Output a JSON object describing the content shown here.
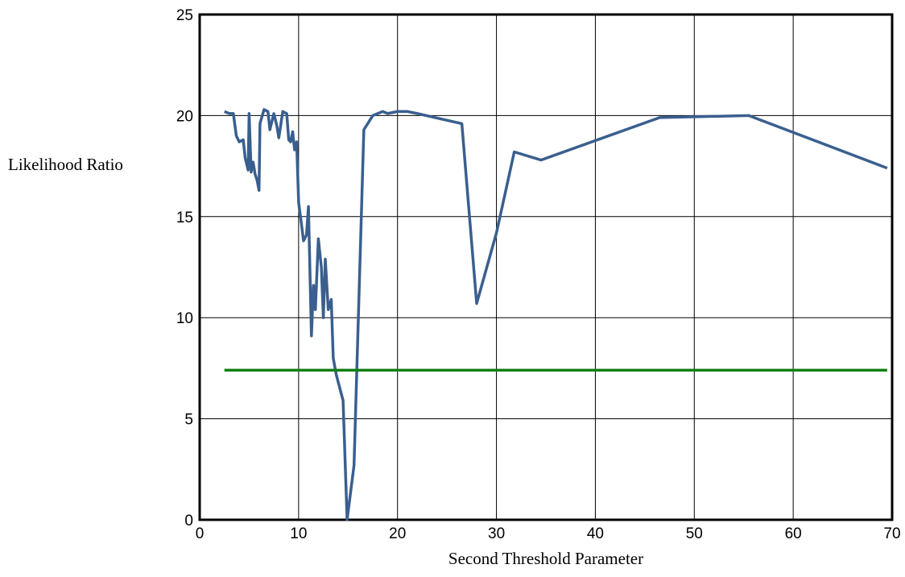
{
  "chart_data": {
    "type": "line",
    "xlabel": "Second Threshold Parameter",
    "ylabel": "Likelihood Ratio",
    "xlim": [
      0,
      70
    ],
    "ylim": [
      0,
      25
    ],
    "x_ticks": [
      "0",
      "10",
      "20",
      "30",
      "40",
      "50",
      "60",
      "70"
    ],
    "y_ticks": [
      "0",
      "5",
      "10",
      "15",
      "20",
      "25"
    ],
    "grid": true,
    "series": [
      {
        "color": "#3a5f8f",
        "points": [
          [
            2.5,
            20.2
          ],
          [
            3.0,
            20.1
          ],
          [
            3.4,
            20.1
          ],
          [
            3.7,
            19.0
          ],
          [
            4.0,
            18.7
          ],
          [
            4.4,
            18.8
          ],
          [
            4.6,
            17.9
          ],
          [
            4.9,
            17.3
          ],
          [
            5.0,
            20.1
          ],
          [
            5.2,
            17.2
          ],
          [
            5.4,
            17.7
          ],
          [
            5.6,
            17.1
          ],
          [
            5.8,
            16.8
          ],
          [
            6.0,
            16.3
          ],
          [
            6.1,
            19.6
          ],
          [
            6.5,
            20.3
          ],
          [
            6.9,
            20.2
          ],
          [
            7.1,
            19.3
          ],
          [
            7.5,
            20.1
          ],
          [
            7.8,
            19.5
          ],
          [
            8.0,
            18.9
          ],
          [
            8.4,
            20.2
          ],
          [
            8.8,
            20.1
          ],
          [
            9.0,
            18.8
          ],
          [
            9.2,
            18.7
          ],
          [
            9.4,
            19.2
          ],
          [
            9.6,
            18.3
          ],
          [
            9.8,
            18.7
          ],
          [
            10.0,
            15.7
          ],
          [
            10.3,
            14.6
          ],
          [
            10.5,
            13.8
          ],
          [
            10.8,
            14.1
          ],
          [
            11.0,
            15.5
          ],
          [
            11.3,
            9.1
          ],
          [
            11.5,
            11.6
          ],
          [
            11.7,
            10.4
          ],
          [
            12.0,
            13.9
          ],
          [
            12.3,
            12.5
          ],
          [
            12.5,
            10.0
          ],
          [
            12.7,
            12.9
          ],
          [
            13.0,
            10.4
          ],
          [
            13.3,
            10.9
          ],
          [
            13.5,
            8.0
          ],
          [
            13.8,
            7.2
          ],
          [
            14.5,
            5.9
          ],
          [
            14.9,
            0.0
          ],
          [
            15.6,
            2.7
          ],
          [
            16.6,
            19.3
          ],
          [
            17.5,
            20.0
          ],
          [
            18.5,
            20.2
          ],
          [
            19.0,
            20.1
          ],
          [
            20.0,
            20.2
          ],
          [
            21.0,
            20.2
          ],
          [
            22.0,
            20.1
          ],
          [
            26.5,
            19.6
          ],
          [
            28.0,
            10.7
          ],
          [
            30.0,
            14.2
          ],
          [
            31.8,
            18.2
          ],
          [
            34.5,
            17.8
          ],
          [
            46.5,
            19.9
          ],
          [
            55.5,
            20.0
          ],
          [
            69.5,
            17.4
          ]
        ]
      },
      {
        "color": "#128012",
        "points": [
          [
            2.5,
            7.4
          ],
          [
            69.5,
            7.4
          ]
        ]
      }
    ]
  }
}
